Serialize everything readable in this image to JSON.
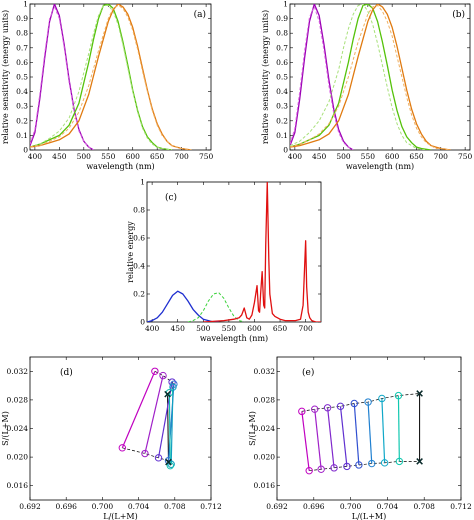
{
  "chart_data": [
    {
      "panel": "(a)",
      "type": "line",
      "xlabel": "wavelength (nm)",
      "ylabel": "relative sensitivity (energy units)",
      "xlim": [
        390,
        760
      ],
      "ylim": [
        0,
        1
      ],
      "xticks": [
        400,
        450,
        500,
        550,
        600,
        650,
        700,
        750
      ],
      "yticks": [
        0,
        0.1,
        0.2,
        0.3,
        0.4,
        0.5,
        0.6,
        0.7,
        0.8,
        0.9,
        1
      ],
      "series": [
        {
          "color": "#9b00b5",
          "x": [
            390,
            400,
            410,
            420,
            430,
            440,
            450,
            460,
            470,
            480,
            490,
            500,
            510,
            520
          ],
          "y": [
            0.03,
            0.12,
            0.35,
            0.63,
            0.88,
            1.0,
            0.92,
            0.72,
            0.48,
            0.28,
            0.14,
            0.06,
            0.02,
            0.0
          ]
        },
        {
          "color": "#d966e0",
          "x": [
            390,
            400,
            410,
            420,
            430,
            440,
            450,
            460,
            470,
            480,
            490,
            500,
            510,
            520
          ],
          "y": [
            0.04,
            0.14,
            0.38,
            0.66,
            0.9,
            0.98,
            0.9,
            0.7,
            0.46,
            0.27,
            0.13,
            0.06,
            0.02,
            0.0
          ]
        },
        {
          "color": "#55c20a",
          "x": [
            390,
            410,
            430,
            450,
            470,
            490,
            510,
            520,
            530,
            540,
            550,
            560,
            570,
            580,
            590,
            600,
            610,
            620,
            630,
            640,
            650,
            660,
            680
          ],
          "y": [
            0.02,
            0.04,
            0.07,
            0.1,
            0.17,
            0.32,
            0.6,
            0.76,
            0.9,
            0.99,
            1.0,
            0.97,
            0.88,
            0.74,
            0.58,
            0.41,
            0.27,
            0.16,
            0.09,
            0.05,
            0.02,
            0.01,
            0.0
          ]
        },
        {
          "color": "#a8e07a",
          "x": [
            390,
            410,
            430,
            450,
            470,
            490,
            510,
            520,
            530,
            540,
            550,
            560,
            570,
            580,
            590,
            600,
            610,
            620,
            630,
            640,
            650,
            660,
            680
          ],
          "y": [
            0.02,
            0.04,
            0.08,
            0.13,
            0.22,
            0.4,
            0.66,
            0.8,
            0.92,
            0.99,
            0.99,
            0.95,
            0.86,
            0.72,
            0.56,
            0.4,
            0.26,
            0.15,
            0.08,
            0.04,
            0.02,
            0.01,
            0.0
          ]
        },
        {
          "color": "#e07a10",
          "x": [
            390,
            410,
            430,
            450,
            470,
            490,
            510,
            530,
            550,
            560,
            570,
            580,
            590,
            600,
            610,
            620,
            630,
            640,
            650,
            660,
            670,
            680,
            690,
            700,
            720
          ],
          "y": [
            0.02,
            0.03,
            0.05,
            0.07,
            0.11,
            0.2,
            0.38,
            0.64,
            0.88,
            0.96,
            1.0,
            0.98,
            0.93,
            0.84,
            0.71,
            0.56,
            0.41,
            0.28,
            0.18,
            0.11,
            0.06,
            0.03,
            0.02,
            0.01,
            0.0
          ]
        },
        {
          "color": "#f0b060",
          "x": [
            390,
            410,
            430,
            450,
            470,
            490,
            510,
            530,
            550,
            560,
            570,
            580,
            590,
            600,
            610,
            620,
            630,
            640,
            650,
            660,
            670,
            680,
            690,
            700,
            720
          ],
          "y": [
            0.02,
            0.03,
            0.06,
            0.09,
            0.15,
            0.26,
            0.44,
            0.68,
            0.9,
            0.97,
            0.99,
            0.97,
            0.91,
            0.82,
            0.69,
            0.54,
            0.4,
            0.27,
            0.17,
            0.1,
            0.06,
            0.03,
            0.02,
            0.01,
            0.0
          ]
        }
      ]
    },
    {
      "panel": "(b)",
      "type": "line",
      "xlabel": "wavelength (nm)",
      "ylabel": "relative sensitivity (energy units)",
      "xlim": [
        390,
        760
      ],
      "ylim": [
        0,
        1
      ],
      "xticks": [
        400,
        450,
        500,
        550,
        600,
        650,
        700,
        750
      ],
      "yticks": [
        0,
        0.1,
        0.2,
        0.3,
        0.4,
        0.5,
        0.6,
        0.7,
        0.8,
        0.9,
        1
      ],
      "series": [
        {
          "color": "#9b00b5",
          "x": [
            390,
            400,
            410,
            420,
            430,
            440,
            450,
            460,
            470,
            480,
            490,
            500,
            510,
            520
          ],
          "y": [
            0.03,
            0.12,
            0.35,
            0.63,
            0.88,
            1.0,
            0.92,
            0.72,
            0.48,
            0.28,
            0.14,
            0.06,
            0.02,
            0.0
          ]
        },
        {
          "color": "#d966e0",
          "x": [
            390,
            400,
            410,
            420,
            430,
            440,
            450,
            460,
            470,
            480,
            490,
            500,
            510,
            520
          ],
          "y": [
            0.04,
            0.15,
            0.4,
            0.68,
            0.91,
            0.98,
            0.88,
            0.68,
            0.44,
            0.25,
            0.12,
            0.05,
            0.02,
            0.0
          ]
        },
        {
          "color": "#55c20a",
          "x": [
            390,
            410,
            430,
            450,
            470,
            490,
            510,
            520,
            530,
            540,
            550,
            560,
            570,
            580,
            590,
            600,
            610,
            620,
            630,
            640,
            650,
            660,
            680
          ],
          "y": [
            0.02,
            0.04,
            0.07,
            0.1,
            0.17,
            0.32,
            0.6,
            0.76,
            0.9,
            0.99,
            1.0,
            0.97,
            0.88,
            0.74,
            0.58,
            0.41,
            0.27,
            0.16,
            0.09,
            0.05,
            0.02,
            0.01,
            0.0
          ]
        },
        {
          "color": "#a8e07a",
          "x": [
            390,
            410,
            430,
            450,
            470,
            490,
            500,
            510,
            520,
            530,
            540,
            550,
            560,
            570,
            580,
            590,
            600,
            610,
            620,
            630,
            640,
            650,
            670
          ],
          "y": [
            0.03,
            0.06,
            0.12,
            0.2,
            0.33,
            0.55,
            0.7,
            0.83,
            0.93,
            0.99,
            1.0,
            0.95,
            0.86,
            0.73,
            0.58,
            0.43,
            0.29,
            0.18,
            0.1,
            0.05,
            0.03,
            0.01,
            0.0
          ]
        },
        {
          "color": "#e07a10",
          "x": [
            390,
            410,
            430,
            450,
            470,
            490,
            510,
            530,
            550,
            560,
            570,
            580,
            590,
            600,
            610,
            620,
            630,
            640,
            650,
            660,
            670,
            680,
            690,
            700,
            720
          ],
          "y": [
            0.02,
            0.03,
            0.05,
            0.07,
            0.11,
            0.2,
            0.38,
            0.64,
            0.88,
            0.96,
            1.0,
            0.98,
            0.93,
            0.84,
            0.71,
            0.56,
            0.41,
            0.28,
            0.18,
            0.11,
            0.06,
            0.03,
            0.02,
            0.01,
            0.0
          ]
        },
        {
          "color": "#f0b060",
          "x": [
            390,
            410,
            430,
            450,
            470,
            490,
            510,
            530,
            550,
            560,
            570,
            580,
            590,
            600,
            610,
            620,
            630,
            640,
            650,
            660,
            670,
            680,
            690,
            700,
            720
          ],
          "y": [
            0.02,
            0.04,
            0.07,
            0.11,
            0.18,
            0.3,
            0.5,
            0.74,
            0.93,
            0.98,
            0.99,
            0.95,
            0.88,
            0.78,
            0.64,
            0.5,
            0.36,
            0.24,
            0.15,
            0.09,
            0.05,
            0.03,
            0.01,
            0.01,
            0.0
          ]
        }
      ]
    },
    {
      "panel": "(c)",
      "type": "line",
      "xlabel": "wavelength (nm)",
      "ylabel": "relative energy",
      "xlim": [
        390,
        730
      ],
      "ylim": [
        0,
        1
      ],
      "xticks": [
        400,
        450,
        500,
        550,
        600,
        650,
        700
      ],
      "yticks": [
        0,
        0.2,
        0.4,
        0.6,
        0.8,
        1
      ],
      "series": [
        {
          "color": "#1f2fd0",
          "x": [
            390,
            400,
            410,
            420,
            430,
            440,
            450,
            460,
            470,
            480,
            490,
            500,
            510,
            520,
            530
          ],
          "y": [
            0.0,
            0.01,
            0.03,
            0.07,
            0.13,
            0.19,
            0.22,
            0.2,
            0.15,
            0.09,
            0.05,
            0.02,
            0.01,
            0.0,
            0.0
          ]
        },
        {
          "color": "#3bd23b",
          "x": [
            470,
            480,
            490,
            500,
            510,
            520,
            530,
            540,
            550,
            560,
            570,
            580
          ],
          "y": [
            0.0,
            0.01,
            0.03,
            0.08,
            0.15,
            0.2,
            0.21,
            0.17,
            0.1,
            0.04,
            0.01,
            0.0
          ]
        },
        {
          "color": "#e01010",
          "x": [
            500,
            540,
            560,
            570,
            575,
            580,
            585,
            590,
            595,
            600,
            605,
            608,
            610,
            612,
            615,
            618,
            620,
            622,
            625,
            628,
            630,
            635,
            640,
            645,
            650,
            660,
            680,
            690,
            695,
            700,
            702,
            705,
            708,
            712,
            720,
            730
          ],
          "y": [
            0.0,
            0.01,
            0.02,
            0.03,
            0.05,
            0.1,
            0.03,
            0.02,
            0.05,
            0.14,
            0.26,
            0.08,
            0.07,
            0.2,
            0.36,
            0.12,
            0.1,
            0.55,
            1.0,
            0.45,
            0.2,
            0.06,
            0.04,
            0.03,
            0.02,
            0.01,
            0.01,
            0.02,
            0.12,
            0.58,
            0.25,
            0.07,
            0.03,
            0.01,
            0.0,
            0.0
          ]
        }
      ]
    },
    {
      "panel": "(d)",
      "type": "scatter",
      "xlabel": "L/(L+M)",
      "ylabel": "S/(L+M)",
      "xlim": [
        0.692,
        0.712
      ],
      "ylim": [
        0.014,
        0.034
      ],
      "xticks": [
        "0.692",
        "0.696",
        "0.700",
        "0.704",
        "0.708",
        "0.712"
      ],
      "yticks": [
        "0.016",
        "0.020",
        "0.024",
        "0.028",
        "0.032"
      ],
      "series": [
        {
          "color": "#c000c0",
          "points": [
            [
              0.7022,
              0.0213
            ],
            [
              0.7058,
              0.032
            ]
          ]
        },
        {
          "color": "#a020c8",
          "points": [
            [
              0.7047,
              0.0205
            ],
            [
              0.7067,
              0.0314
            ]
          ]
        },
        {
          "color": "#6030d0",
          "points": [
            [
              0.7062,
              0.0199
            ],
            [
              0.7077,
              0.0305
            ]
          ]
        },
        {
          "color": "#3070d0",
          "points": [
            [
              0.7073,
              0.0195
            ],
            [
              0.7079,
              0.0302
            ]
          ]
        },
        {
          "color": "#10a0c0",
          "points": [
            [
              0.7076,
              0.019
            ],
            [
              0.7078,
              0.0298
            ]
          ]
        },
        {
          "color": "#10c0b0",
          "points": [
            [
              0.7075,
              0.0188
            ],
            [
              0.7074,
              0.029
            ]
          ]
        }
      ],
      "crosses": [
        [
          0.7072,
          0.0288
        ],
        [
          0.7073,
          0.0193
        ]
      ]
    },
    {
      "panel": "(e)",
      "type": "scatter",
      "xlabel": "L/(L+M)",
      "ylabel": "S/(L+M)",
      "xlim": [
        0.692,
        0.712
      ],
      "ylim": [
        0.014,
        0.034
      ],
      "xticks": [
        "0.692",
        "0.696",
        "0.700",
        "0.704",
        "0.708",
        "0.712"
      ],
      "yticks": [
        "0.016",
        "0.020",
        "0.024",
        "0.028",
        "0.032"
      ],
      "series": [
        {
          "color": "#c000c0",
          "points": [
            [
              0.6947,
              0.0264
            ],
            [
              0.6955,
              0.0181
            ]
          ]
        },
        {
          "color": "#a020c8",
          "points": [
            [
              0.6961,
              0.0267
            ],
            [
              0.6968,
              0.0183
            ]
          ]
        },
        {
          "color": "#8028cc",
          "points": [
            [
              0.6975,
              0.0269
            ],
            [
              0.6982,
              0.0185
            ]
          ]
        },
        {
          "color": "#6030d0",
          "points": [
            [
              0.6989,
              0.0271
            ],
            [
              0.6996,
              0.0187
            ]
          ]
        },
        {
          "color": "#3050d0",
          "points": [
            [
              0.7004,
              0.0275
            ],
            [
              0.7009,
              0.0189
            ]
          ]
        },
        {
          "color": "#2080d0",
          "points": [
            [
              0.7019,
              0.0277
            ],
            [
              0.7023,
              0.0191
            ]
          ]
        },
        {
          "color": "#10a8c8",
          "points": [
            [
              0.7034,
              0.0282
            ],
            [
              0.7037,
              0.0192
            ]
          ]
        },
        {
          "color": "#10c8b0",
          "points": [
            [
              0.7052,
              0.0286
            ],
            [
              0.7053,
              0.0194
            ]
          ]
        }
      ],
      "crosses": [
        [
          0.7075,
          0.0289
        ],
        [
          0.7075,
          0.0194
        ]
      ]
    }
  ]
}
